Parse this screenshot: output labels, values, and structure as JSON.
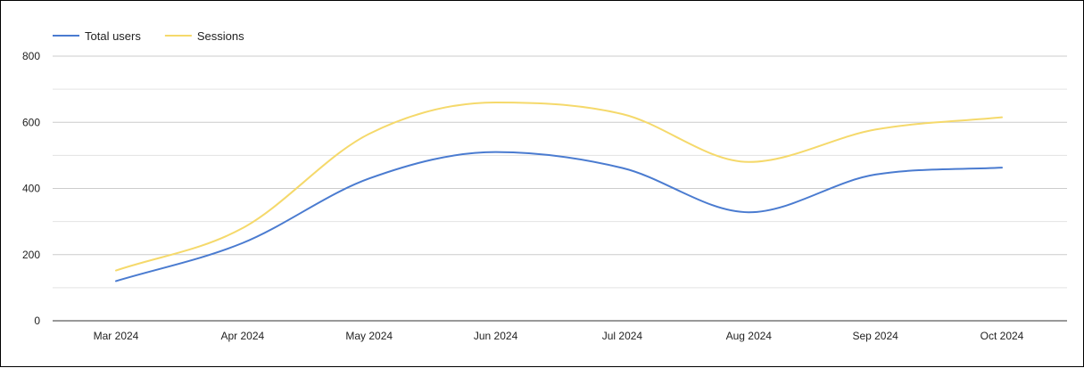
{
  "chart_data": {
    "type": "line",
    "categories": [
      "Mar 2024",
      "Apr 2024",
      "May 2024",
      "Jun 2024",
      "Jul 2024",
      "Aug 2024",
      "Sep 2024",
      "Oct 2024"
    ],
    "series": [
      {
        "name": "Total users",
        "color": "#4a7bd0",
        "values": [
          120,
          235,
          430,
          510,
          462,
          328,
          442,
          463
        ]
      },
      {
        "name": "Sessions",
        "color": "#f5d96b",
        "values": [
          152,
          280,
          565,
          660,
          625,
          480,
          578,
          615
        ]
      }
    ],
    "ylim": [
      0,
      800
    ],
    "yticks": [
      0,
      200,
      400,
      600,
      800
    ],
    "grid": true,
    "minor_gridlines": true,
    "legend_position": "top-left",
    "smooth": true,
    "title": "",
    "xlabel": "",
    "ylabel": ""
  }
}
